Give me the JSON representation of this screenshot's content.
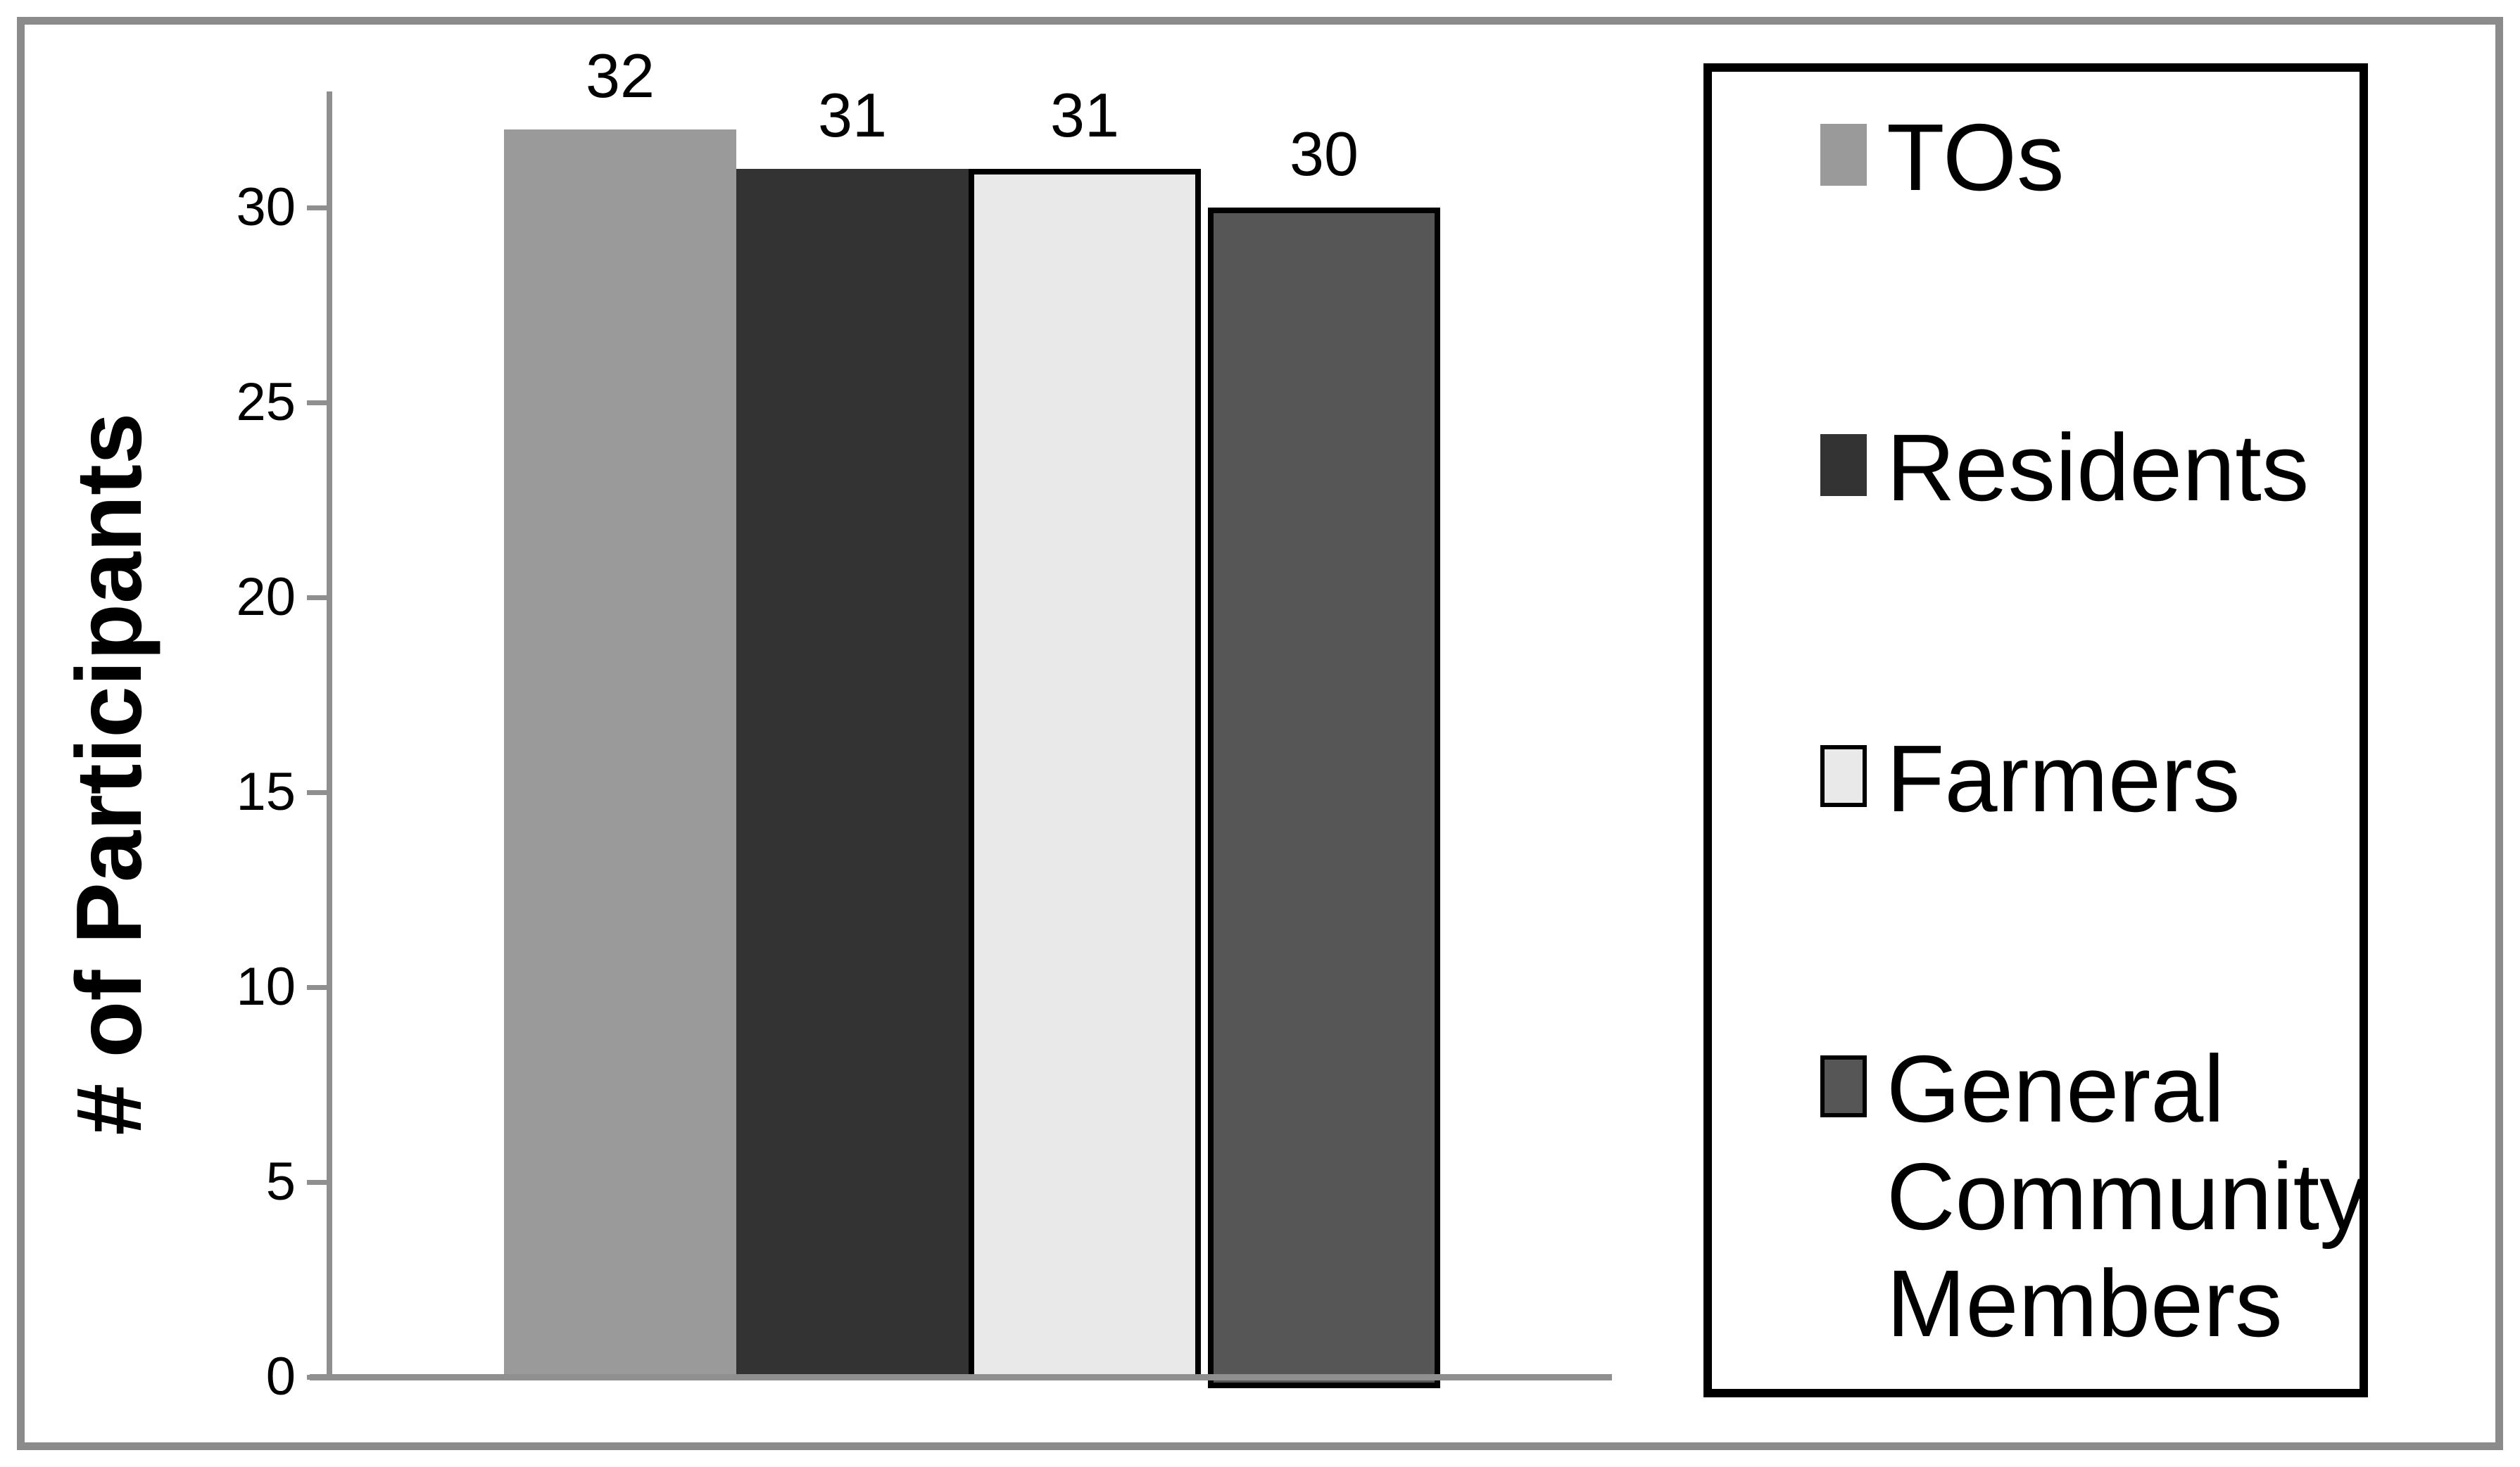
{
  "chart_data": {
    "type": "bar",
    "title": "",
    "xlabel": "",
    "ylabel": "# of Participants",
    "ylim": [
      0,
      33
    ],
    "yticks": [
      0,
      5,
      10,
      15,
      20,
      25,
      30
    ],
    "grid": false,
    "legend_position": "right",
    "categories": [
      "TOs",
      "Residents",
      "Farmers",
      "General Community Members"
    ],
    "series": [
      {
        "name": "TOs",
        "value": 32,
        "label": "32",
        "color": "#9a9a9a",
        "border": null
      },
      {
        "name": "Residents",
        "value": 31,
        "label": "31",
        "color": "#333333",
        "border": null
      },
      {
        "name": "Farmers",
        "value": 31,
        "label": "31",
        "color": "#e9e9e9",
        "border": "#000000"
      },
      {
        "name": "General Community Members",
        "value": 30,
        "label": "30",
        "color": "#565656",
        "border": "#000000"
      }
    ]
  },
  "colors": {
    "axis": "#8f8f8f",
    "outer_frame": "#8b8b8b",
    "legend_border": "#000000",
    "background": "#ffffff",
    "text": "#000000"
  }
}
